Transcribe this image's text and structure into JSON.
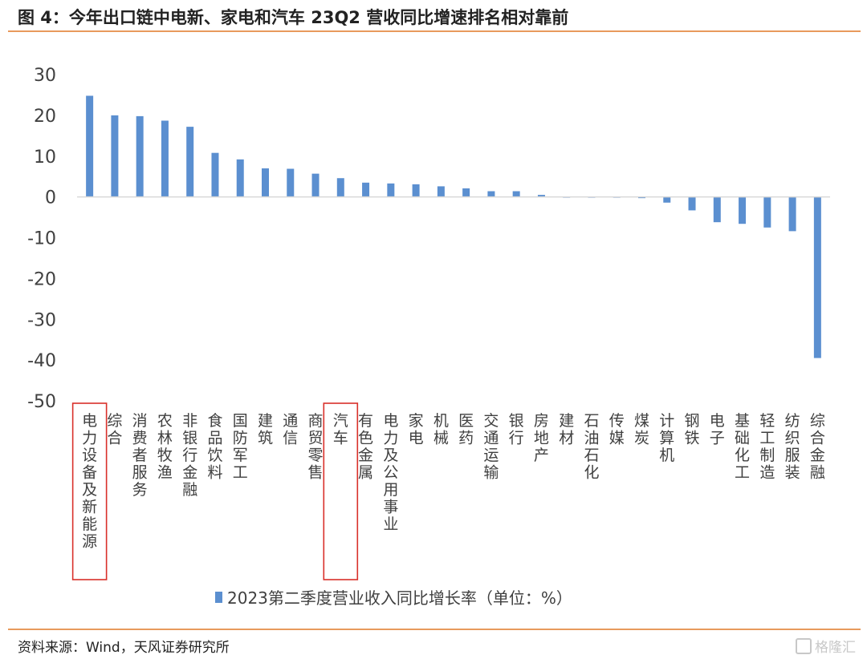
{
  "figure": {
    "title": "图 4：今年出口链中电新、家电和汽车 23Q2 营收同比增速排名相对靠前",
    "source": "资料来源：Wind，天风证券研究所",
    "watermark": "格隆汇"
  },
  "chart_data": {
    "type": "bar",
    "categories": [
      "电力设备及新能源",
      "综合",
      "消费者服务",
      "农林牧渔",
      "非银行金融",
      "食品饮料",
      "国防军工",
      "建筑",
      "通信",
      "商贸零售",
      "汽车",
      "有色金属",
      "电力及公用事业",
      "家电",
      "机械",
      "医药",
      "交通运输",
      "银行",
      "房地产",
      "建材",
      "石油石化",
      "传媒",
      "煤炭",
      "计算机",
      "钢铁",
      "电子",
      "基础化工",
      "轻工制造",
      "纺织服装",
      "综合金融"
    ],
    "series": [
      {
        "name": "2023第二季度营业收入同比增长率（单位：%）",
        "values": [
          24.8,
          20.0,
          19.8,
          18.7,
          17.2,
          10.8,
          9.2,
          7.0,
          6.9,
          5.7,
          4.6,
          3.5,
          3.3,
          3.1,
          2.6,
          2.1,
          1.4,
          1.4,
          0.5,
          -0.1,
          -0.1,
          -0.1,
          -0.3,
          -1.4,
          -3.3,
          -6.2,
          -6.6,
          -7.5,
          -8.4,
          -39.5
        ]
      }
    ],
    "ylim": [
      -50,
      30
    ],
    "yticks": [
      30,
      20,
      10,
      0,
      -10,
      -20,
      -30,
      -40,
      -50
    ],
    "highlighted_categories": [
      "电力设备及新能源",
      "汽车"
    ],
    "bar_color": "#5b8fd0",
    "highlight_color": "#d9302a",
    "legend_position": "bottom",
    "grid": false
  }
}
